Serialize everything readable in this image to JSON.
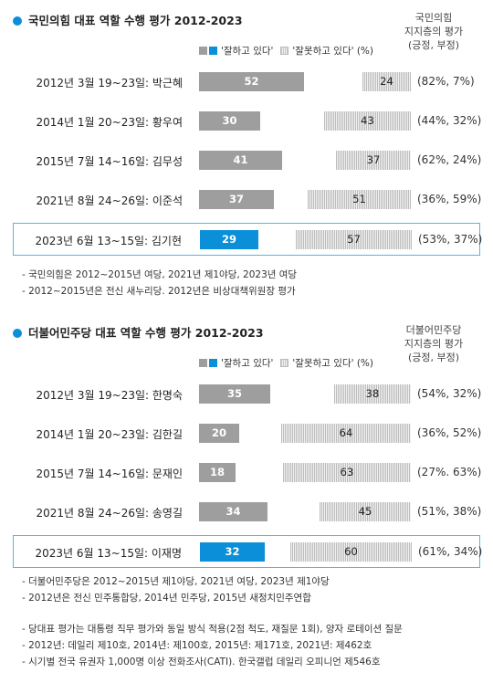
{
  "colors": {
    "positive": "#9e9e9e",
    "highlight": "#0a8fd8",
    "negative_hatch": "#bdbdbd"
  },
  "legend": {
    "positive": "'잘하고 있다'",
    "negative": "'잘못하고 있다' (%)"
  },
  "chart_data": [
    {
      "type": "bar",
      "title": "국민의힘 대표 역할 수행 평가 2012-2023",
      "side_header": [
        "국민의힘",
        "지지층의 평가",
        "(긍정, 부정)"
      ],
      "categories": [
        "2012년 3월 19~23일: 박근혜",
        "2014년 1월 20~23일: 황우여",
        "2015년 7월 14~16일: 김무성",
        "2021년 8월 24~26일: 이준석",
        "2023년 6월 13~15일: 김기현"
      ],
      "series": [
        {
          "name": "'잘하고 있다'",
          "values": [
            52,
            30,
            41,
            37,
            29
          ]
        },
        {
          "name": "'잘못하고 있다' (%)",
          "values": [
            24,
            43,
            37,
            51,
            57
          ]
        }
      ],
      "supporters": [
        "(82%,  7%)",
        "(44%, 32%)",
        "(62%, 24%)",
        "(36%, 59%)",
        "(53%, 37%)"
      ],
      "highlight_index": 4,
      "notes": [
        "- 국민의힘은 2012~2015년 여당, 2021년 제1야당, 2023년 여당",
        "- 2012~2015년은 전신 새누리당. 2012년은 비상대책위원장 평가"
      ]
    },
    {
      "type": "bar",
      "title": "더불어민주당 대표 역할 수행 평가 2012-2023",
      "side_header": [
        "더불어민주당",
        "지지층의 평가",
        "(긍정, 부정)"
      ],
      "categories": [
        "2012년 3월 19~23일: 한명숙",
        "2014년 1월 20~23일: 김한길",
        "2015년 7월 14~16일: 문재인",
        "2021년 8월 24~26일: 송영길",
        "2023년 6월 13~15일: 이재명"
      ],
      "series": [
        {
          "name": "'잘하고 있다'",
          "values": [
            35,
            20,
            18,
            34,
            32
          ]
        },
        {
          "name": "'잘못하고 있다' (%)",
          "values": [
            38,
            64,
            63,
            45,
            60
          ]
        }
      ],
      "supporters": [
        "(54%, 32%)",
        "(36%, 52%)",
        "(27%. 63%)",
        "(51%, 38%)",
        "(61%, 34%)"
      ],
      "highlight_index": 4,
      "notes": [
        "- 더불어민주당은 2012~2015년 제1야당, 2021년 여당, 2023년 제1야당",
        "- 2012년은 전신 민주통합당, 2014년 민주당, 2015년 새정치민주연합"
      ]
    }
  ],
  "footer": [
    "- 당대표 평가는 대통령 직무 평가와 동일 방식 적용(2점 척도, 재질문 1회), 양자 로테이션 질문",
    "- 2012년: 데일리 제10호, 2014년: 제100호, 2015년: 제171호, 2021년: 제462호",
    "- 시기별 전국 유권자 1,000명 이상 전화조사(CATI). 한국갤럽 데일리 오피니언 제546호"
  ]
}
